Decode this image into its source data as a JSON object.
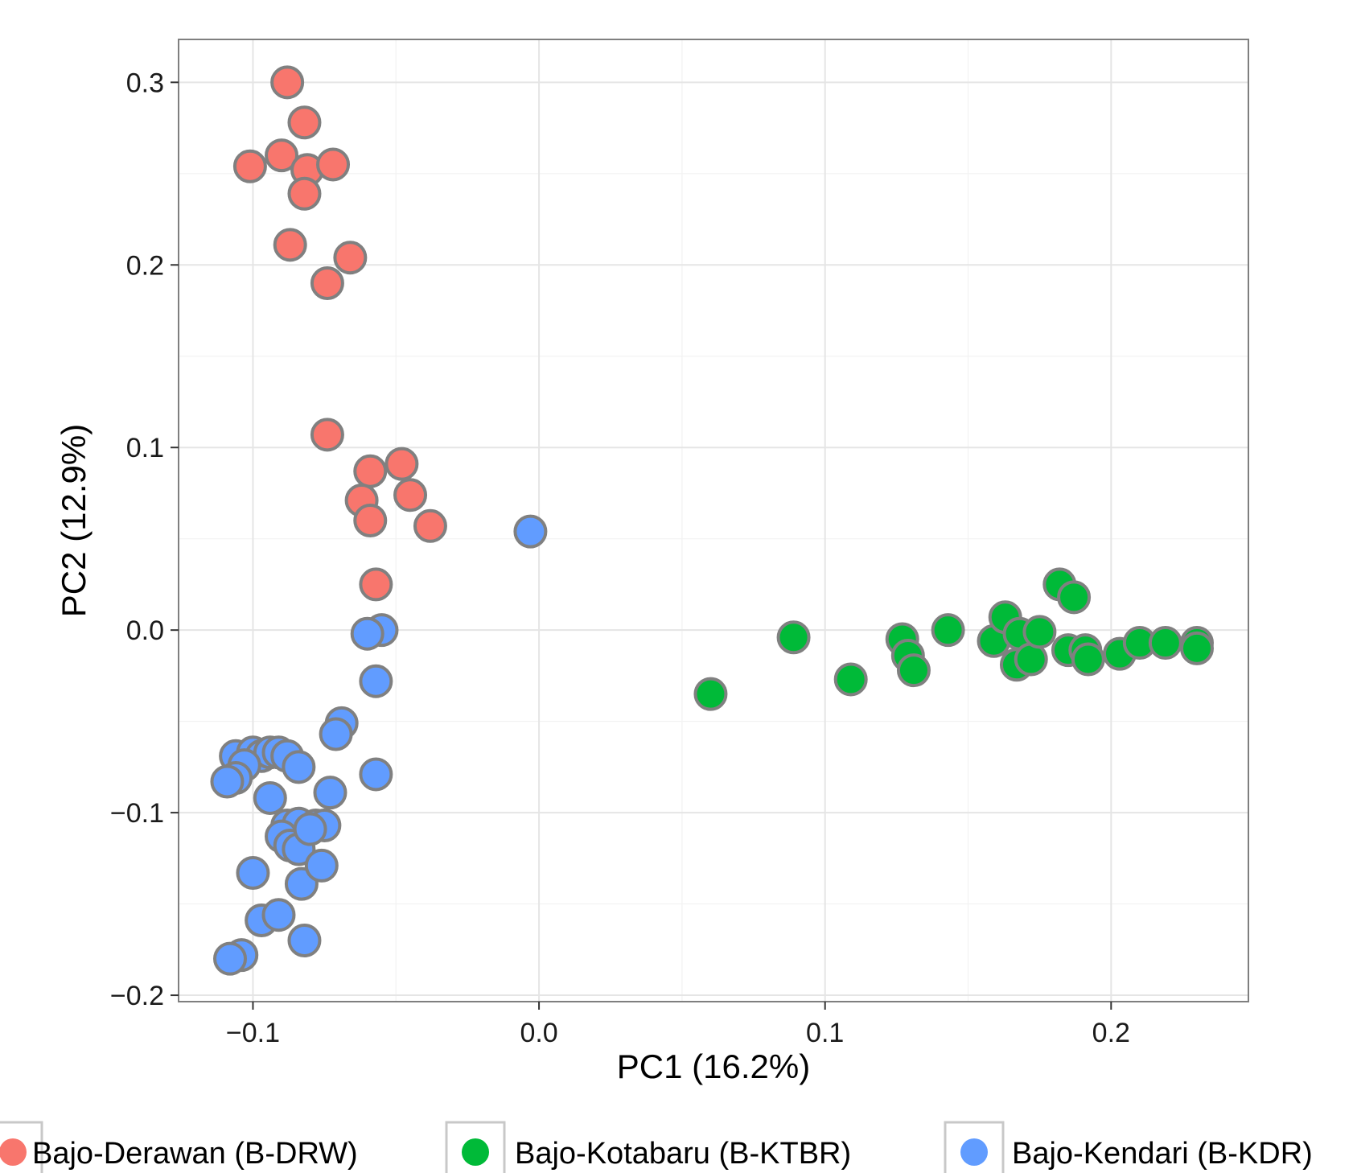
{
  "chart_data": {
    "type": "scatter",
    "xlabel": "PC1 (16.2%)",
    "ylabel": "PC2 (12.9%)",
    "xlim": [
      -0.126,
      0.248
    ],
    "ylim": [
      -0.2035,
      0.3235
    ],
    "x_ticks": [
      -0.1,
      0.0,
      0.1,
      0.2
    ],
    "x_tick_labels": [
      "−0.1",
      "0.0",
      "0.1",
      "0.2"
    ],
    "y_ticks": [
      -0.2,
      -0.1,
      0.0,
      0.1,
      0.2,
      0.3
    ],
    "y_tick_labels": [
      "−0.2",
      "−0.1",
      "0.0",
      "0.1",
      "0.2",
      "0.3"
    ],
    "grid": true,
    "legend_position": "bottom",
    "series": [
      {
        "name": "Bajo-Derawan (B-DRW)",
        "color": "#F8766D",
        "points": [
          [
            -0.088,
            0.3
          ],
          [
            -0.082,
            0.278
          ],
          [
            -0.101,
            0.254
          ],
          [
            -0.09,
            0.26
          ],
          [
            -0.081,
            0.252
          ],
          [
            -0.072,
            0.255
          ],
          [
            -0.082,
            0.239
          ],
          [
            -0.087,
            0.211
          ],
          [
            -0.066,
            0.204
          ],
          [
            -0.074,
            0.19
          ],
          [
            -0.074,
            0.107
          ],
          [
            -0.048,
            0.091
          ],
          [
            -0.059,
            0.087
          ],
          [
            -0.045,
            0.074
          ],
          [
            -0.062,
            0.071
          ],
          [
            -0.059,
            0.06
          ],
          [
            -0.038,
            0.057
          ],
          [
            -0.057,
            0.025
          ]
        ]
      },
      {
        "name": "Bajo-Kotabaru (B-KTBR)",
        "color": "#00BA38",
        "points": [
          [
            0.06,
            -0.035
          ],
          [
            0.089,
            -0.004
          ],
          [
            0.109,
            -0.027
          ],
          [
            0.127,
            -0.005
          ],
          [
            0.129,
            -0.014
          ],
          [
            0.131,
            -0.022
          ],
          [
            0.143,
            0.0
          ],
          [
            0.159,
            -0.006
          ],
          [
            0.163,
            0.007
          ],
          [
            0.168,
            -0.002
          ],
          [
            0.167,
            -0.019
          ],
          [
            0.172,
            -0.016
          ],
          [
            0.175,
            -0.001
          ],
          [
            0.182,
            0.025
          ],
          [
            0.187,
            0.018
          ],
          [
            0.185,
            -0.011
          ],
          [
            0.191,
            -0.011
          ],
          [
            0.192,
            -0.016
          ],
          [
            0.203,
            -0.013
          ],
          [
            0.21,
            -0.007
          ],
          [
            0.219,
            -0.007
          ],
          [
            0.23,
            -0.007
          ],
          [
            0.23,
            -0.01
          ]
        ]
      },
      {
        "name": "Bajo-Kendari (B-KDR)",
        "color": "#619CFF",
        "points": [
          [
            -0.003,
            0.054
          ],
          [
            -0.055,
            0.0
          ],
          [
            -0.06,
            -0.002
          ],
          [
            -0.057,
            -0.028
          ],
          [
            -0.069,
            -0.051
          ],
          [
            -0.071,
            -0.057
          ],
          [
            -0.057,
            -0.079
          ],
          [
            -0.106,
            -0.069
          ],
          [
            -0.1,
            -0.067
          ],
          [
            -0.097,
            -0.069
          ],
          [
            -0.094,
            -0.067
          ],
          [
            -0.091,
            -0.067
          ],
          [
            -0.088,
            -0.069
          ],
          [
            -0.084,
            -0.075
          ],
          [
            -0.103,
            -0.074
          ],
          [
            -0.106,
            -0.081
          ],
          [
            -0.109,
            -0.083
          ],
          [
            -0.094,
            -0.092
          ],
          [
            -0.073,
            -0.089
          ],
          [
            -0.088,
            -0.107
          ],
          [
            -0.084,
            -0.106
          ],
          [
            -0.078,
            -0.107
          ],
          [
            -0.075,
            -0.107
          ],
          [
            -0.09,
            -0.113
          ],
          [
            -0.087,
            -0.118
          ],
          [
            -0.084,
            -0.12
          ],
          [
            -0.08,
            -0.109
          ],
          [
            -0.1,
            -0.133
          ],
          [
            -0.083,
            -0.139
          ],
          [
            -0.076,
            -0.129
          ],
          [
            -0.097,
            -0.159
          ],
          [
            -0.091,
            -0.156
          ],
          [
            -0.082,
            -0.17
          ],
          [
            -0.104,
            -0.178
          ],
          [
            -0.108,
            -0.18
          ]
        ]
      }
    ]
  }
}
